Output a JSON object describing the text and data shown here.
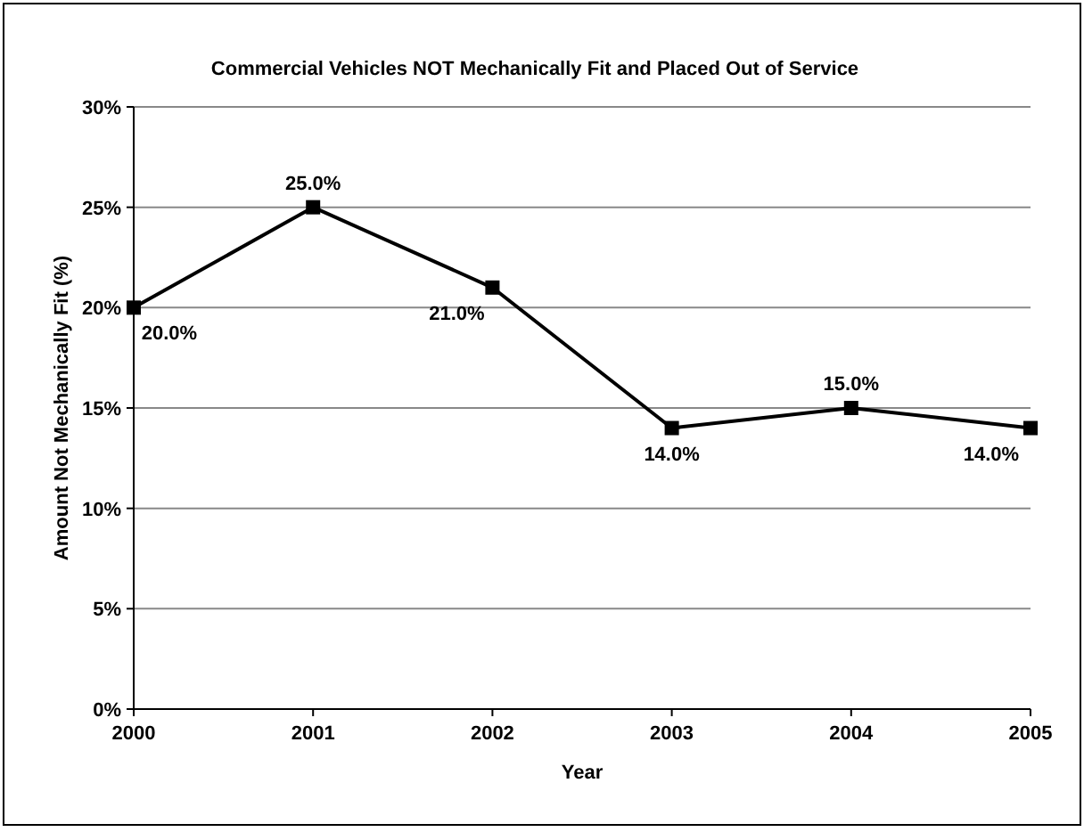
{
  "chart_data": {
    "type": "line",
    "title": "Commercial Vehicles NOT Mechanically Fit and Placed Out of Service",
    "xlabel": "Year",
    "ylabel": "Amount Not Mechanically Fit (%)",
    "categories": [
      "2000",
      "2001",
      "2002",
      "2003",
      "2004",
      "2005"
    ],
    "series": [
      {
        "color": "#000000",
        "values": [
          20,
          25,
          21,
          14,
          15,
          14
        ],
        "value_labels": [
          "20.0%",
          "25.0%",
          "21.0%",
          "14.0%",
          "15.0%",
          "14.0%"
        ]
      }
    ],
    "ylim": [
      0,
      30
    ],
    "yticks": [
      {
        "value": 0,
        "label": "0%"
      },
      {
        "value": 5,
        "label": "5%"
      },
      {
        "value": 10,
        "label": "10%"
      },
      {
        "value": 15,
        "label": "15%"
      },
      {
        "value": 20,
        "label": "20%"
      },
      {
        "value": 25,
        "label": "25%"
      },
      {
        "value": 30,
        "label": "30%"
      }
    ],
    "grid": "y",
    "marker": "square",
    "line_style": "solid"
  }
}
